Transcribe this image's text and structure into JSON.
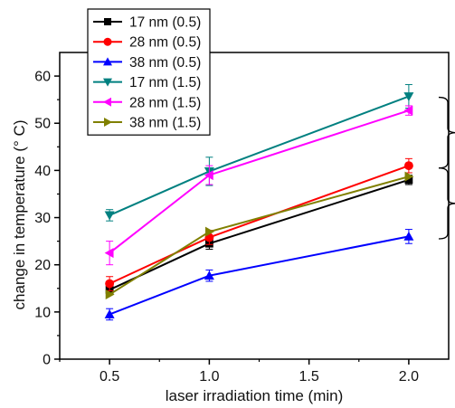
{
  "chart_data": {
    "type": "line",
    "title": "",
    "xlabel": "laser irradiation time (min)",
    "ylabel": "change in temperature (° C)",
    "x": [
      0.5,
      1.0,
      2.0
    ],
    "xlim": [
      0.25,
      2.2
    ],
    "ylim": [
      0,
      65
    ],
    "xticks": [
      "0.5",
      "1.0",
      "1.5",
      "2.0"
    ],
    "xtick_values": [
      0.5,
      1.0,
      1.5,
      2.0
    ],
    "yticks": [
      "0",
      "10",
      "20",
      "30",
      "40",
      "50",
      "60"
    ],
    "ytick_values": [
      0,
      10,
      20,
      30,
      40,
      50,
      60
    ],
    "grid": false,
    "legend_position": "top-left",
    "series": [
      {
        "name": "17 nm (0.5)",
        "color": "#000000",
        "marker": "square",
        "values": [
          14.7,
          24.5,
          38.0
        ],
        "errors": [
          1.0,
          1.2,
          1.0
        ]
      },
      {
        "name": "28 nm (0.5)",
        "color": "#ff0000",
        "marker": "circle",
        "values": [
          16.0,
          25.8,
          41.0
        ],
        "errors": [
          1.5,
          1.5,
          1.5
        ]
      },
      {
        "name": "38 nm (0.5)",
        "color": "#0000ff",
        "marker": "triangle-up",
        "values": [
          9.5,
          17.7,
          26.0
        ],
        "errors": [
          1.2,
          1.2,
          1.5
        ]
      },
      {
        "name": "17 nm (1.5)",
        "color": "#008080",
        "marker": "triangle-down",
        "values": [
          30.5,
          39.8,
          55.7
        ],
        "errors": [
          1.2,
          3.0,
          2.5
        ]
      },
      {
        "name": "28 nm (1.5)",
        "color": "#ff00ff",
        "marker": "triangle-left",
        "values": [
          22.5,
          39.0,
          52.7
        ],
        "errors": [
          2.5,
          2.0,
          1.0
        ]
      },
      {
        "name": "38 nm (1.5)",
        "color": "#808000",
        "marker": "triangle-right",
        "values": [
          13.7,
          27.0,
          38.7
        ],
        "errors": [
          0.0,
          0.0,
          0.0
        ]
      }
    ],
    "annotations": [
      {
        "type": "brace",
        "y_range": [
          40.5,
          55.5
        ]
      },
      {
        "type": "brace",
        "y_range": [
          25.5,
          40.5
        ]
      }
    ]
  }
}
